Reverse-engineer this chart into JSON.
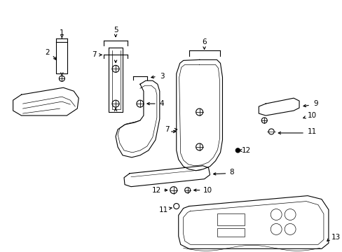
{
  "background_color": "#ffffff",
  "line_color": "#000000",
  "fig_width": 4.89,
  "fig_height": 3.6,
  "dpi": 100,
  "font_size": 7.5
}
